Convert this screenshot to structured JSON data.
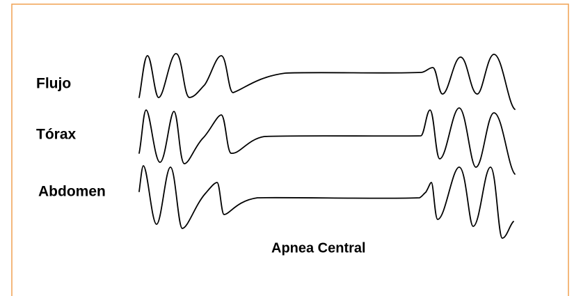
{
  "labels": [
    "Flujo",
    "Tórax",
    "Abdomen"
  ],
  "caption": "Apnea Central"
}
